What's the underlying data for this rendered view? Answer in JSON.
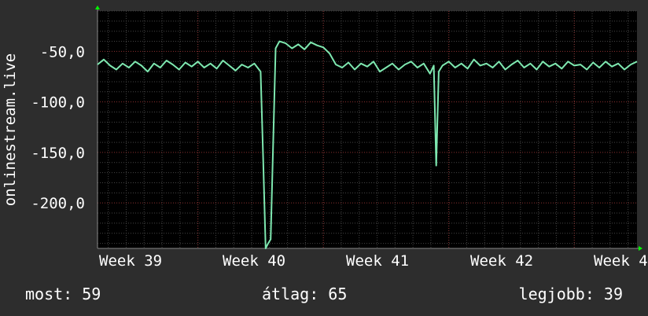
{
  "chart_data": {
    "type": "line",
    "ylabel": "onlinestream.live",
    "xlabel": "",
    "title": "",
    "ylim": [
      -245,
      -10
    ],
    "xlim": [
      38.2,
      42.5
    ],
    "y_ticks": [
      -50,
      -100,
      -150,
      -200
    ],
    "y_tick_labels": [
      "-50,0",
      "-100,0",
      "-150,0",
      "-200,0"
    ],
    "x_ticks": [
      39,
      40,
      41,
      42,
      43
    ],
    "x_tick_labels": [
      "Week 39",
      "Week 40",
      "Week 41",
      "Week 42",
      "Week 4"
    ],
    "grid": true,
    "colors": {
      "line": "#7ee8b0",
      "background": "#2d2d2d",
      "plot_bg": "#000000",
      "major_grid": "#8a3030",
      "minor_grid": "#444444",
      "axis_arrow": "#00ff00"
    },
    "series": [
      {
        "x": [
          38.2,
          38.25,
          38.3,
          38.35,
          38.4,
          38.45,
          38.5,
          38.55,
          38.6,
          38.65,
          38.7,
          38.75,
          38.8,
          38.85,
          38.9,
          38.95,
          39.0,
          39.05,
          39.1,
          39.15,
          39.2,
          39.25,
          39.3,
          39.35,
          39.4,
          39.45,
          39.5,
          39.52,
          39.54,
          39.56,
          39.58,
          39.62,
          39.65,
          39.7,
          39.75,
          39.8,
          39.85,
          39.9,
          39.95,
          40.0,
          40.05,
          40.1,
          40.15,
          40.2,
          40.25,
          40.3,
          40.35,
          40.4,
          40.45,
          40.5,
          40.55,
          40.6,
          40.65,
          40.7,
          40.75,
          40.8,
          40.85,
          40.88,
          40.9,
          40.92,
          40.95,
          41.0,
          41.05,
          41.1,
          41.15,
          41.2,
          41.25,
          41.3,
          41.35,
          41.4,
          41.45,
          41.5,
          41.55,
          41.6,
          41.65,
          41.7,
          41.75,
          41.8,
          41.85,
          41.9,
          41.95,
          42.0,
          42.05,
          42.1,
          42.15,
          42.2,
          42.25,
          42.3,
          42.35,
          42.4,
          42.45,
          42.5
        ],
        "y": [
          -63,
          -58,
          -64,
          -68,
          -62,
          -66,
          -60,
          -64,
          -70,
          -62,
          -66,
          -59,
          -63,
          -68,
          -61,
          -65,
          -60,
          -66,
          -62,
          -67,
          -59,
          -64,
          -69,
          -63,
          -66,
          -62,
          -70,
          -155,
          -245,
          -240,
          -236,
          -47,
          -40,
          -42,
          -47,
          -43,
          -48,
          -41,
          -44,
          -46,
          -52,
          -63,
          -66,
          -61,
          -68,
          -62,
          -65,
          -60,
          -70,
          -66,
          -62,
          -68,
          -63,
          -60,
          -66,
          -62,
          -72,
          -64,
          -163,
          -70,
          -64,
          -60,
          -66,
          -62,
          -67,
          -58,
          -64,
          -62,
          -66,
          -60,
          -68,
          -63,
          -59,
          -66,
          -62,
          -68,
          -60,
          -65,
          -62,
          -67,
          -60,
          -64,
          -63,
          -68,
          -61,
          -66,
          -60,
          -65,
          -62,
          -68,
          -63,
          -60
        ]
      }
    ]
  },
  "stats": {
    "current_label": "most:",
    "current_value": "59",
    "average_label": "átlag:",
    "average_value": "65",
    "best_label": "legjobb:",
    "best_value": "39"
  }
}
